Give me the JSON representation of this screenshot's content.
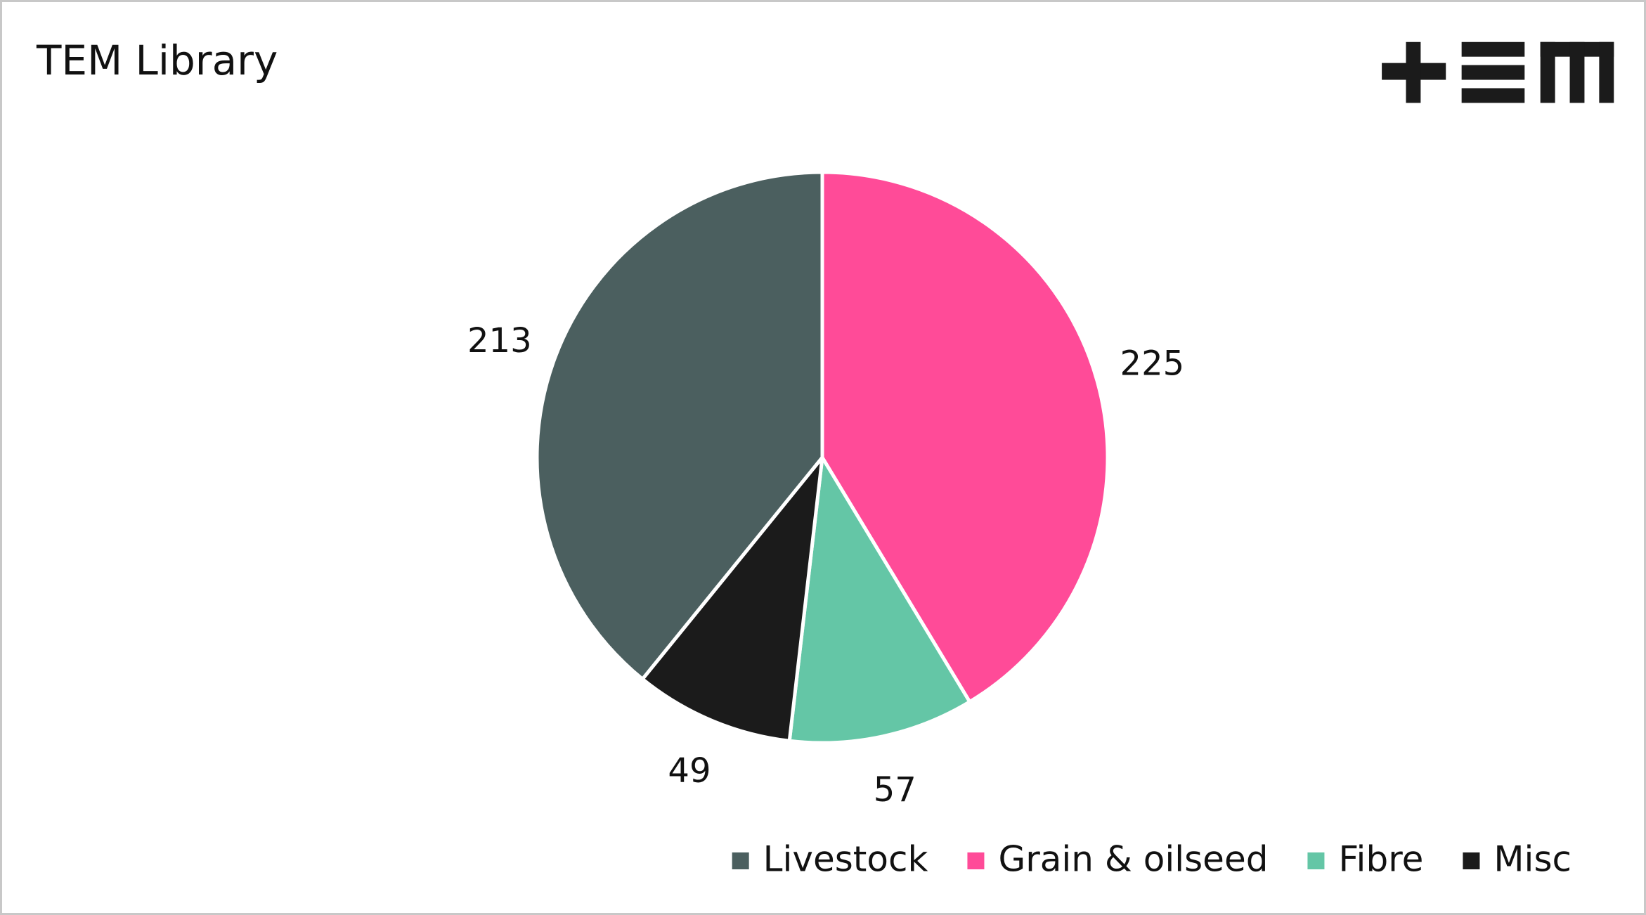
{
  "chart_data": {
    "type": "pie",
    "title": "TEM Library",
    "categories": [
      "Livestock",
      "Grain & oilseed",
      "Fibre",
      "Misc"
    ],
    "values": [
      213,
      225,
      57,
      49
    ],
    "colors": [
      "#4b5f5f",
      "#ff4b98",
      "#64c6a6",
      "#1b1b1b"
    ],
    "legend": "bottom-right"
  }
}
